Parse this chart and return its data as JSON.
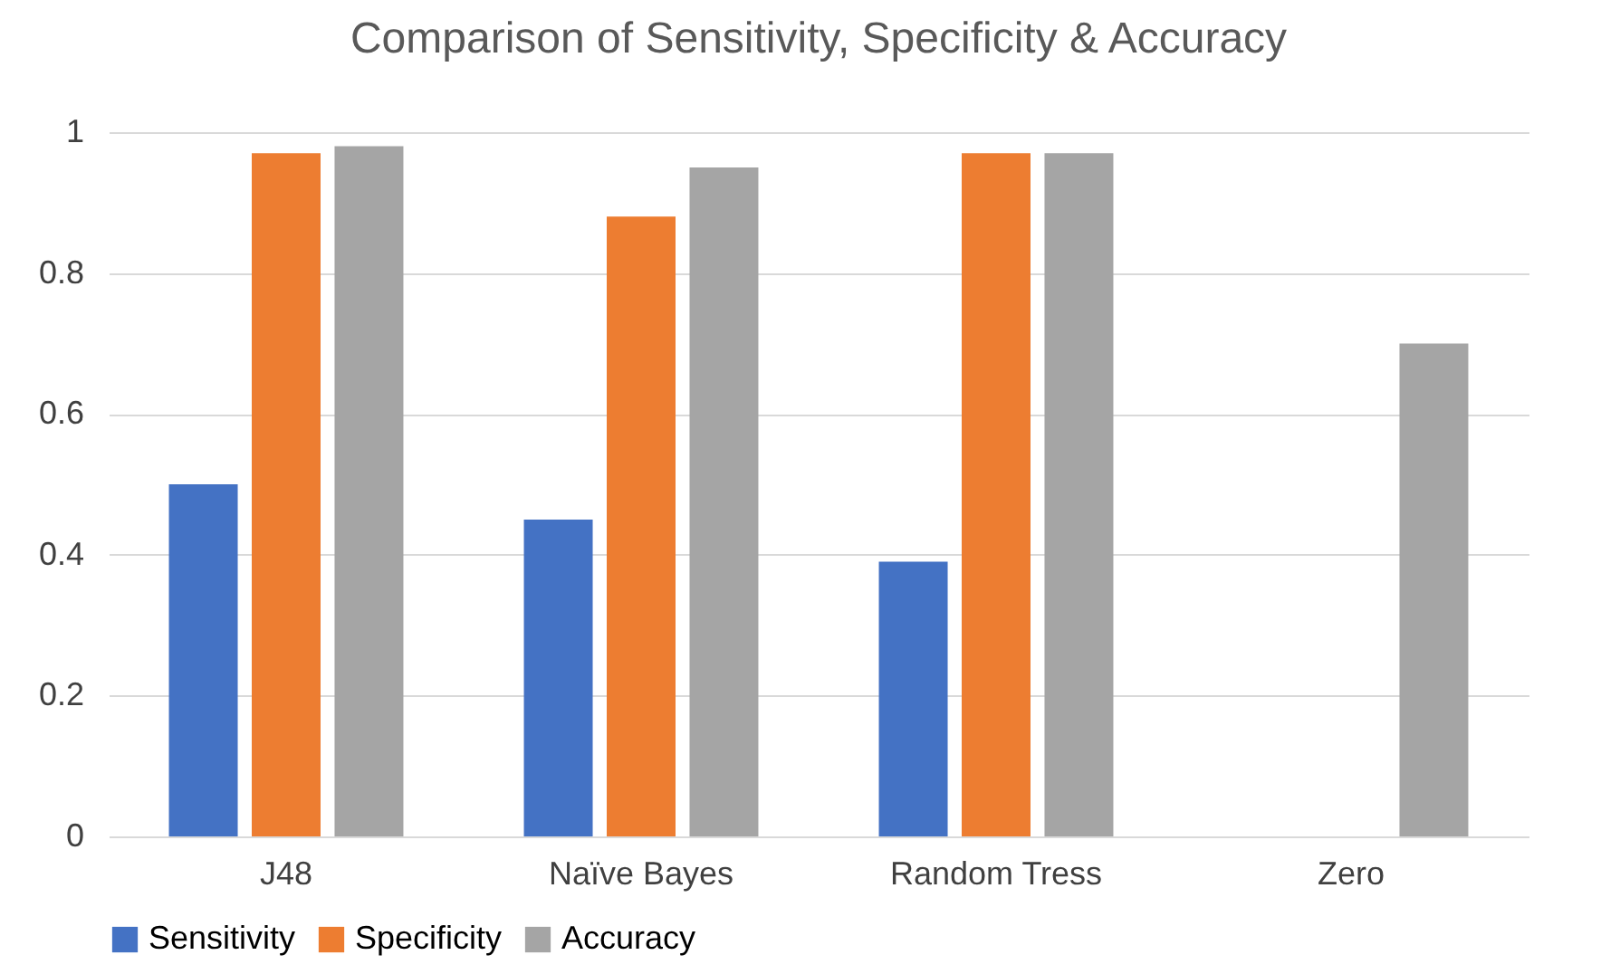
{
  "chart_data": {
    "type": "bar",
    "title": "Comparison of Sensitivity, Specificity & Accuracy",
    "categories": [
      "J48",
      "Naïve Bayes",
      "Random Tress",
      "Zero"
    ],
    "series": [
      {
        "name": "Sensitivity",
        "color": "#4472c4",
        "values": [
          0.5,
          0.45,
          0.39,
          0
        ]
      },
      {
        "name": "Specificity",
        "color": "#ed7d31",
        "values": [
          0.97,
          0.88,
          0.97,
          0
        ]
      },
      {
        "name": "Accuracy",
        "color": "#a5a5a5",
        "values": [
          0.98,
          0.95,
          0.97,
          0.7
        ]
      }
    ],
    "ylim": [
      0,
      1
    ],
    "yticks": [
      0,
      0.2,
      0.4,
      0.6,
      0.8,
      1
    ],
    "grid": "y",
    "legend": "bottom"
  }
}
